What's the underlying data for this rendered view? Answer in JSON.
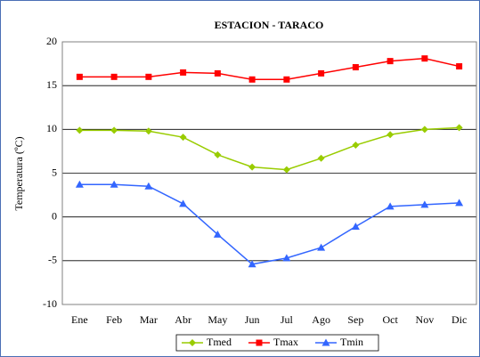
{
  "chart_data": {
    "type": "line",
    "title": "ESTACION - TARACO",
    "y_label": "Temperatura (ºC)",
    "categories": [
      "Ene",
      "Feb",
      "Mar",
      "Abr",
      "May",
      "Jun",
      "Jul",
      "Ago",
      "Sep",
      "Oct",
      "Nov",
      "Dic"
    ],
    "series": [
      {
        "name": "Tmed",
        "color": "#99cc00",
        "marker": "diamond",
        "values": [
          9.9,
          9.9,
          9.8,
          9.1,
          7.1,
          5.7,
          5.4,
          6.7,
          8.2,
          9.4,
          10.0,
          10.2
        ]
      },
      {
        "name": "Tmax",
        "color": "#ff0000",
        "marker": "square",
        "values": [
          16.0,
          16.0,
          16.0,
          16.5,
          16.4,
          15.7,
          15.7,
          16.4,
          17.1,
          17.8,
          18.1,
          17.2
        ]
      },
      {
        "name": "Tmin",
        "color": "#3366ff",
        "marker": "triangle",
        "values": [
          3.7,
          3.7,
          3.5,
          1.5,
          -2.0,
          -5.4,
          -4.7,
          -3.5,
          -1.1,
          1.2,
          1.4,
          1.6
        ]
      }
    ],
    "ylim": [
      -10,
      20
    ],
    "yticks": [
      -10,
      -5,
      0,
      5,
      10,
      15,
      20
    ],
    "grid": true,
    "legend": "bottom"
  }
}
